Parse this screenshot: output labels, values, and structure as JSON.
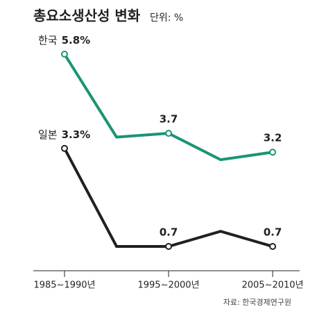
{
  "chart_data": {
    "type": "line",
    "title": "총요소생산성 변화",
    "unit": "단위: %",
    "source": "자료: 한국경제연구원",
    "categories": [
      "1985~1990년",
      null,
      "1995~2000년",
      null,
      "2005~2010년"
    ],
    "series": [
      {
        "name": "한국",
        "color": "#1a9475",
        "values": [
          5.8,
          3.6,
          3.7,
          3.0,
          3.2
        ],
        "value_labels": [
          "5.8%",
          null,
          "3.7",
          null,
          "3.2"
        ]
      },
      {
        "name": "일본",
        "color": "#231f20",
        "values": [
          3.3,
          0.7,
          0.7,
          1.1,
          0.7
        ],
        "value_labels": [
          "3.3%",
          null,
          "0.7",
          null,
          "0.7"
        ]
      }
    ],
    "ylim": [
      0,
      6.5
    ]
  }
}
